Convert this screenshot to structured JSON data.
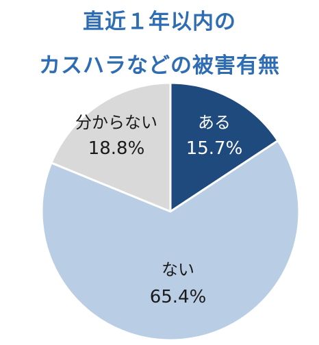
{
  "title_lines": [
    "直近１年以内の",
    "カスハラなどの被害有無"
  ],
  "chart_data": {
    "type": "pie",
    "title": "直近１年以内のカスハラなどの被害有無",
    "slices": [
      {
        "label": "ある",
        "value": 15.7,
        "value_label": "15.7%",
        "color": "#1F4A7D",
        "text_color": "#ffffff"
      },
      {
        "label": "ない",
        "value": 65.4,
        "value_label": "65.4%",
        "color": "#B9CDE5",
        "text_color": "#1a1a1a"
      },
      {
        "label": "分からない",
        "value": 18.8,
        "value_label": "18.8%",
        "color": "#D9D9D9",
        "text_color": "#1a1a1a"
      }
    ],
    "start_angle": "12 o'clock",
    "direction": "clockwise",
    "legend": "none",
    "data_labels": "inside"
  }
}
